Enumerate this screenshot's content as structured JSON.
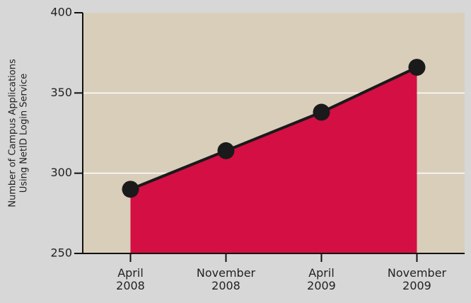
{
  "chart_data": {
    "type": "area",
    "ylabel": [
      "Number of Campus Applications",
      "Using NetID Login Service"
    ],
    "categories": [
      "April 2008",
      "November 2008",
      "April 2009",
      "November 2009"
    ],
    "series": [
      {
        "color": "#d40f44",
        "values": [
          290,
          314,
          338,
          366
        ]
      }
    ],
    "ylim": [
      250,
      400
    ],
    "yticks": [
      250,
      300,
      350,
      400
    ],
    "grid": true
  }
}
